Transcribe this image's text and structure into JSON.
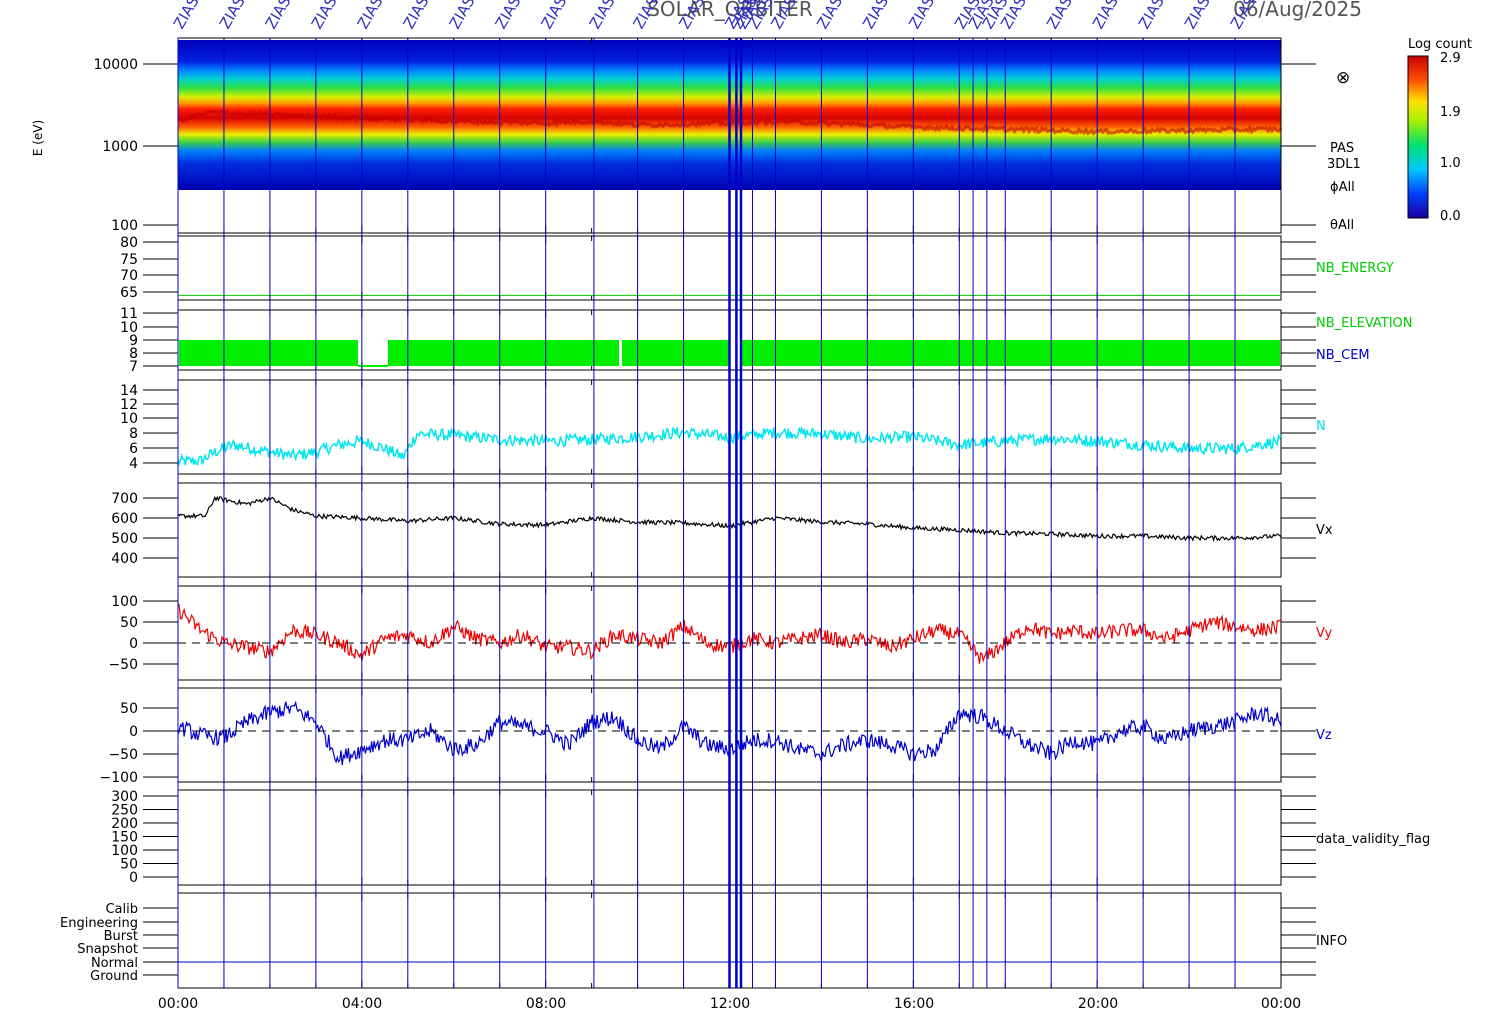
{
  "title": "SOLAR_ORBITER",
  "date": "06/Aug/2025",
  "event_label": "ZIAS",
  "colorbar": {
    "title": "Log count",
    "ticks": [
      "2.9",
      "1.9",
      "1.0",
      "0.0"
    ]
  },
  "spectrogram": {
    "ylabel": "E (eV)",
    "yticks": [
      "10000",
      "1000",
      "100"
    ],
    "right_labels": [
      "PAS",
      "3DL1",
      "ϕAll",
      "θAll"
    ],
    "circle_symbol": "⊗"
  },
  "x_axis": {
    "tick_labels": [
      "00:00",
      "04:00",
      "08:00",
      "12:00",
      "16:00",
      "20:00",
      "00:00"
    ]
  },
  "panels": [
    {
      "key": "energy",
      "label": "NB_ENERGY",
      "label_color": "#00cc00",
      "ticks": [
        "80",
        "75",
        "70",
        "65"
      ]
    },
    {
      "key": "elev",
      "label": "NB_ELEVATION",
      "label_color": "#00cc00",
      "label2": "NB_CEM",
      "label2_color": "#0000cc",
      "ticks": [
        "11",
        "10",
        "9",
        "8",
        "7"
      ]
    },
    {
      "key": "n",
      "label": "N",
      "label_color": "#00e6ee",
      "ticks": [
        "14",
        "12",
        "10",
        "8",
        "6",
        "4"
      ]
    },
    {
      "key": "vx",
      "label": "Vx",
      "label_color": "#000000",
      "ticks": [
        "700",
        "600",
        "500",
        "400"
      ]
    },
    {
      "key": "vy",
      "label": "Vy",
      "label_color": "#ee0000",
      "ticks": [
        "100",
        "50",
        "0",
        "−50"
      ]
    },
    {
      "key": "vz",
      "label": "Vz",
      "label_color": "#0000cc",
      "ticks": [
        "50",
        "0",
        "−50",
        "−100"
      ]
    },
    {
      "key": "flag",
      "label": "data_validity_flag",
      "label_color": "#000000",
      "ticks": [
        "300",
        "250",
        "200",
        "150",
        "100",
        "50",
        "0"
      ]
    },
    {
      "key": "info",
      "label": "INFO",
      "label_color": "#000000",
      "ticks": [
        "Calib",
        "Engineering",
        "Burst",
        "Snapshot",
        "Normal",
        "Ground"
      ]
    }
  ],
  "chart_data": {
    "type": "line",
    "x_unit": "hours UT",
    "xlim": [
      0,
      24
    ],
    "events_hours": [
      0.0,
      1.0,
      2.0,
      3.0,
      4.0,
      5.0,
      6.0,
      7.0,
      8.0,
      9.05,
      10.0,
      11.0,
      12.0,
      12.15,
      12.25,
      12.5,
      13.0,
      14.0,
      15.0,
      16.0,
      17.0,
      17.3,
      17.6,
      18.0,
      19.0,
      20.0,
      21.0,
      22.0,
      23.0
    ],
    "series": [
      {
        "name": "N",
        "hours": [
          0,
          0.5,
          0.8,
          1.2,
          2,
          2.5,
          3,
          3.5,
          4,
          4.5,
          4.9,
          5.2,
          6,
          7,
          8,
          9,
          10,
          11,
          12,
          13,
          14,
          15,
          16,
          17,
          18,
          19,
          20,
          21,
          22,
          23,
          24
        ],
        "values": [
          4.2,
          4.3,
          5.5,
          6.5,
          5.5,
          5.0,
          5.5,
          6.5,
          7.0,
          6.0,
          4.8,
          8.0,
          7.8,
          7.2,
          7.0,
          7.2,
          7.6,
          8.2,
          7.5,
          8.2,
          8.0,
          7.3,
          7.6,
          6.5,
          7.0,
          7.4,
          7.0,
          6.5,
          6.0,
          6.0,
          7.0
        ]
      },
      {
        "name": "Vx",
        "hours": [
          0,
          0.6,
          0.8,
          1.5,
          2,
          2.5,
          3,
          4,
          5,
          6,
          7,
          8,
          9,
          10,
          11,
          12,
          13,
          14,
          15,
          16,
          17,
          18,
          19,
          20,
          21,
          22,
          23,
          24
        ],
        "values": [
          610,
          610,
          700,
          670,
          700,
          640,
          610,
          600,
          585,
          600,
          570,
          565,
          600,
          580,
          575,
          560,
          600,
          580,
          570,
          550,
          540,
          525,
          520,
          510,
          510,
          500,
          500,
          510
        ]
      },
      {
        "name": "Vy",
        "hours": [
          0,
          0.5,
          1,
          1.5,
          2,
          2.5,
          3,
          3.5,
          4,
          4.5,
          5,
          5.5,
          6,
          6.5,
          7,
          7.5,
          8,
          8.5,
          9,
          9.5,
          10,
          10.5,
          11,
          11.5,
          12,
          12.5,
          13,
          13.5,
          14,
          14.5,
          15,
          15.5,
          16,
          16.5,
          17,
          17.5,
          18,
          18.5,
          19,
          19.5,
          20,
          20.5,
          21,
          21.5,
          22,
          22.5,
          23,
          23.5,
          24
        ],
        "values": [
          80,
          30,
          0,
          -10,
          -20,
          30,
          20,
          0,
          -30,
          10,
          20,
          0,
          40,
          10,
          0,
          20,
          -10,
          -10,
          -20,
          20,
          10,
          0,
          40,
          0,
          -10,
          10,
          0,
          10,
          20,
          0,
          10,
          -10,
          10,
          30,
          20,
          -40,
          0,
          40,
          20,
          30,
          20,
          30,
          30,
          10,
          30,
          50,
          40,
          30,
          40
        ]
      },
      {
        "name": "Vz",
        "hours": [
          0,
          0.5,
          1,
          1.5,
          2,
          2.5,
          3,
          3.5,
          4,
          4.5,
          5,
          5.5,
          6,
          6.5,
          7,
          7.5,
          8,
          8.5,
          9,
          9.5,
          10,
          10.5,
          11,
          11.5,
          12,
          12.5,
          13,
          13.5,
          14,
          14.5,
          15,
          15.5,
          16,
          16.5,
          17,
          17.5,
          18,
          18.5,
          19,
          19.5,
          20,
          20.5,
          21,
          21.5,
          22,
          22.5,
          23,
          23.5,
          24
        ],
        "values": [
          10,
          -10,
          -15,
          20,
          40,
          50,
          20,
          -60,
          -40,
          -20,
          -20,
          0,
          -40,
          -30,
          20,
          10,
          0,
          -30,
          20,
          30,
          -20,
          -40,
          10,
          -30,
          -40,
          -20,
          -20,
          -40,
          -50,
          -30,
          -20,
          -30,
          -50,
          -40,
          40,
          30,
          0,
          -30,
          -50,
          -20,
          -30,
          0,
          10,
          -20,
          0,
          10,
          20,
          40,
          20
        ]
      },
      {
        "name": "NB_ENERGY",
        "hours": [
          0,
          24
        ],
        "values": [
          64,
          64
        ]
      }
    ],
    "spectrogram_peak_ev": {
      "hours": [
        0,
        0.7,
        2,
        4,
        6,
        8,
        9,
        10,
        12,
        13,
        16,
        20,
        24
      ],
      "values": [
        2000,
        2600,
        2400,
        2200,
        2000,
        1900,
        2000,
        1800,
        1900,
        2000,
        1700,
        1500,
        1600
      ]
    },
    "colorbar_range": [
      0.0,
      2.9
    ]
  }
}
